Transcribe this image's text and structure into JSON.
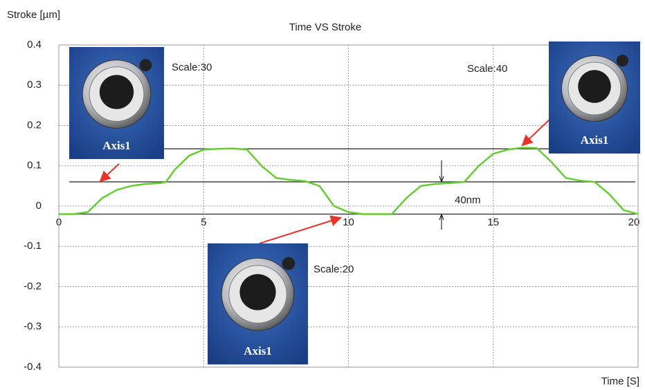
{
  "chart_data": {
    "type": "line",
    "title": "Time VS Stroke",
    "y_label": "Stroke [µm]",
    "x_label": "Time [S]",
    "xlim": [
      0,
      20
    ],
    "ylim": [
      -0.4,
      0.4
    ],
    "xticks": [
      0,
      5,
      10,
      15,
      20
    ],
    "yticks": [
      0.4,
      0.3,
      0.2,
      0.1,
      0,
      -0.1,
      -0.2,
      -0.3,
      -0.4
    ],
    "grid": true,
    "reference_lines": [
      0.142,
      0.06,
      -0.02
    ],
    "series": [
      {
        "color": "#66cc33",
        "x": [
          0,
          0.5,
          1,
          1.5,
          2,
          2.5,
          3,
          3.5,
          3.7,
          4,
          4.5,
          5,
          5.5,
          6,
          6.5,
          7,
          7.5,
          8,
          8.5,
          9,
          9.5,
          10,
          10.5,
          11,
          11.5,
          12,
          12.5,
          13,
          13.5,
          14,
          14.5,
          15,
          15.5,
          16,
          16.5,
          17,
          17.5,
          18,
          18.5,
          19,
          19.5,
          20
        ],
        "values": [
          -0.02,
          -0.02,
          -0.015,
          0.02,
          0.04,
          0.05,
          0.055,
          0.057,
          0.06,
          0.09,
          0.125,
          0.14,
          0.142,
          0.143,
          0.14,
          0.1,
          0.07,
          0.065,
          0.062,
          0.05,
          0.0,
          -0.015,
          -0.02,
          -0.02,
          -0.02,
          0.02,
          0.05,
          0.055,
          0.057,
          0.06,
          0.1,
          0.13,
          0.14,
          0.145,
          0.144,
          0.11,
          0.07,
          0.063,
          0.06,
          0.03,
          -0.01,
          -0.02
        ]
      }
    ],
    "annotations": [
      "Scale:30",
      "Scale:40",
      "Scale:20",
      "40nm"
    ],
    "image_labels": [
      "Axis1",
      "Axis1",
      "Axis1"
    ]
  }
}
